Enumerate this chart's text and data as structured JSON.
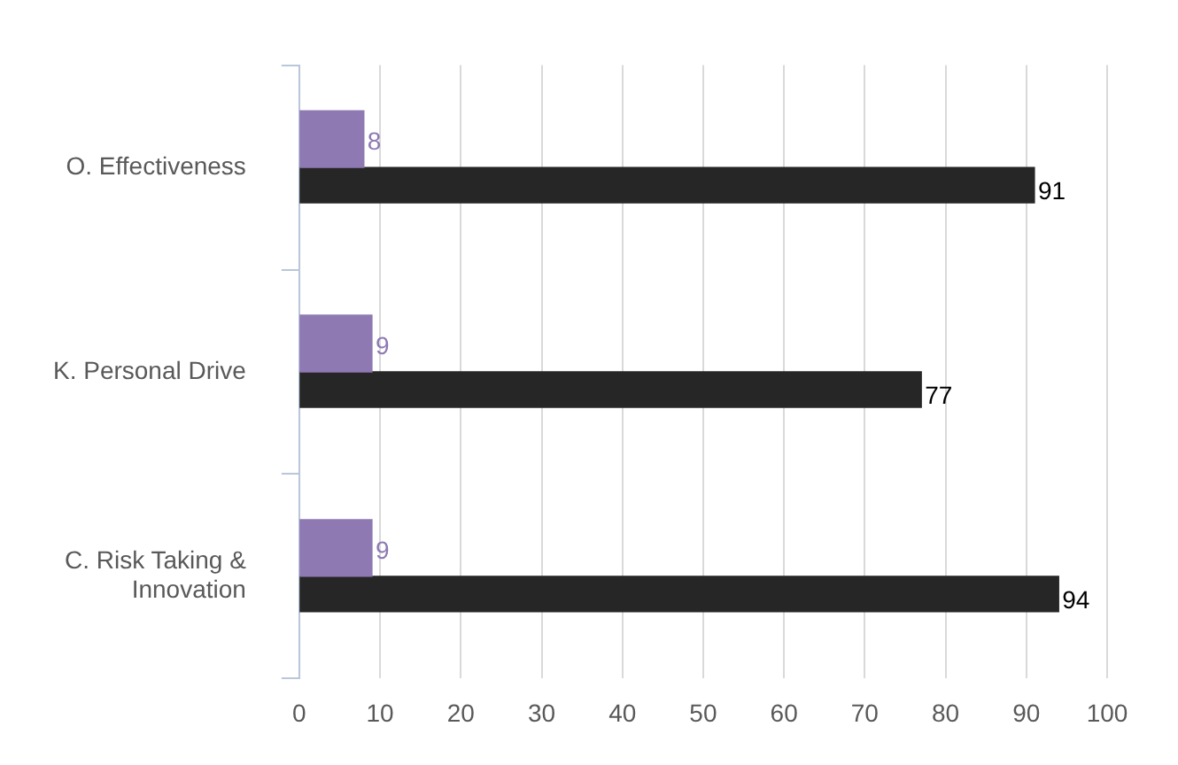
{
  "chart_data": {
    "type": "bar",
    "orientation": "horizontal",
    "categories": [
      "O. Effectiveness",
      "K. Personal Drive",
      "C. Risk Taking & Innovation"
    ],
    "series": [
      {
        "color": "#8e79b3",
        "values": [
          8,
          9,
          9
        ]
      },
      {
        "color": "#262626",
        "values": [
          91,
          77,
          94
        ]
      }
    ],
    "xlim": [
      0,
      100
    ],
    "xticks": [
      0,
      10,
      20,
      30,
      40,
      50,
      60,
      70,
      80,
      90,
      100
    ],
    "grid": "x",
    "data_labels": true,
    "legend": false
  }
}
